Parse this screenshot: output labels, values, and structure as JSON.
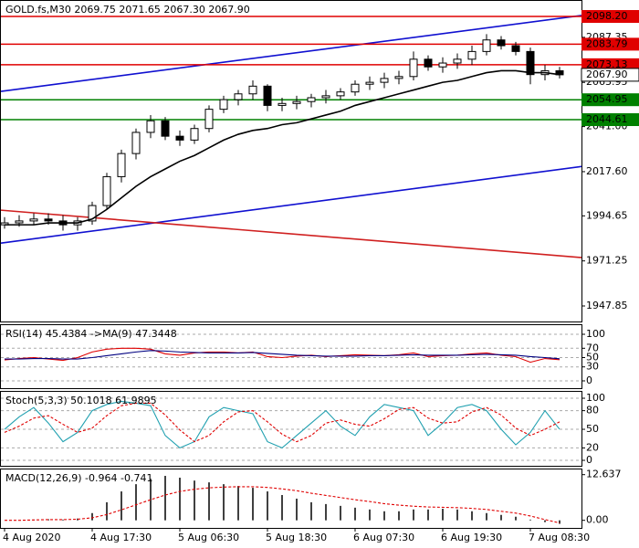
{
  "chart_data": [
    {
      "type": "candlestick",
      "title": "GOLD.fs,M30  2069.75 2071.65 2067.30 2067.90",
      "categories": [
        "4 Aug 2020",
        null,
        null,
        null,
        null,
        null,
        "4 Aug 17:30",
        null,
        null,
        null,
        null,
        null,
        "5 Aug 06:30",
        null,
        null,
        null,
        null,
        null,
        "5 Aug 18:30",
        null,
        null,
        null,
        null,
        null,
        "6 Aug 07:30",
        null,
        null,
        null,
        null,
        null,
        "6 Aug 19:30",
        null,
        null,
        null,
        null,
        null,
        "7 Aug 08:30",
        null,
        null
      ],
      "open": [
        1990,
        1991,
        1992,
        1993,
        1992,
        1990,
        1992,
        2000,
        2015,
        2027,
        2038,
        2044,
        2036,
        2034,
        2040,
        2050,
        2055,
        2058,
        2062,
        2052,
        2053,
        2054,
        2056,
        2057,
        2059,
        2063,
        2064,
        2066,
        2067,
        2076,
        2072,
        2074,
        2076,
        2080,
        2086,
        2083,
        2080,
        2068,
        2070
      ],
      "high": [
        1994,
        1995,
        1996,
        1996,
        1995,
        1994,
        2002,
        2017,
        2029,
        2040,
        2047,
        2046,
        2039,
        2042,
        2052,
        2057,
        2060,
        2065,
        2063,
        2056,
        2057,
        2058,
        2060,
        2061,
        2065,
        2067,
        2069,
        2070,
        2080,
        2078,
        2077,
        2079,
        2083,
        2089,
        2088,
        2085,
        2082,
        2073,
        2072
      ],
      "low": [
        1988,
        1989,
        1990,
        1990,
        1987,
        1987,
        1990,
        1998,
        2012,
        2024,
        2035,
        2034,
        2031,
        2032,
        2038,
        2048,
        2052,
        2055,
        2049,
        2049,
        2050,
        2051,
        2053,
        2055,
        2057,
        2060,
        2061,
        2063,
        2065,
        2070,
        2069,
        2071,
        2073,
        2078,
        2081,
        2078,
        2063,
        2065,
        2066
      ],
      "close": [
        1991,
        1992,
        1993,
        1992,
        1990,
        1992,
        2000,
        2015,
        2027,
        2038,
        2044,
        2036,
        2034,
        2040,
        2050,
        2055,
        2058,
        2062,
        2052,
        2053,
        2054,
        2056,
        2057,
        2059,
        2063,
        2064,
        2066,
        2067,
        2076,
        2072,
        2074,
        2076,
        2080,
        2086,
        2083,
        2080,
        2068,
        2070,
        2067.9
      ],
      "series": [
        {
          "color": "#000000",
          "kind": "line",
          "values": [
            1990,
            1990,
            1990,
            1991,
            1991,
            1991,
            1993,
            1998,
            2004,
            2010,
            2015,
            2019,
            2023,
            2026,
            2030,
            2034,
            2037,
            2039,
            2040,
            2042,
            2043,
            2045,
            2047,
            2049,
            2052,
            2054,
            2056,
            2058,
            2060,
            2062,
            2064,
            2065,
            2067,
            2069,
            2070,
            2070,
            2069,
            2069,
            2068
          ]
        }
      ],
      "ylim": [
        1939.79,
        2106.74
      ],
      "yticks": [
        2087.35,
        2063.95,
        {
          "value": 2041,
          "label": "2041.00"
        },
        {
          "value": 2017.6,
          "label": "2017.60"
        },
        1994.65,
        1971.25,
        1947.85
      ],
      "levels": [
        {
          "value": 2098.2,
          "label": "2098.20",
          "color": "#e00000"
        },
        {
          "value": 2083.79,
          "label": "2083.79",
          "color": "#e00000"
        },
        {
          "value": 2073.13,
          "label": "2073.13",
          "color": "#e00000"
        },
        {
          "value": 2054.95,
          "label": "2054.95",
          "color": "#008000"
        },
        {
          "value": 2044.61,
          "label": "2044.61",
          "color": "#008000"
        }
      ],
      "last_price": {
        "value": 2067.9,
        "label": "2067.90"
      },
      "trendlines": [
        {
          "start": 2059.3,
          "end": 2098.7,
          "color": "#1010d0"
        },
        {
          "start": 1980.5,
          "end": 2020.3,
          "color": "#1010d0"
        },
        {
          "start": 1997.6,
          "end": 1973.0,
          "color": "#d02020"
        }
      ],
      "grid": false
    },
    {
      "type": "line",
      "title": "RSI(14) 45.4384  ->MA(9) 47.3448",
      "series": [
        {
          "color": "#e00000",
          "kind": "line",
          "values": [
            45,
            48,
            50,
            47,
            44,
            50,
            62,
            68,
            70,
            70,
            68,
            58,
            55,
            60,
            62,
            62,
            60,
            62,
            52,
            50,
            53,
            55,
            52,
            54,
            56,
            55,
            54,
            56,
            60,
            52,
            54,
            55,
            58,
            60,
            55,
            52,
            40,
            48,
            45.4384
          ]
        },
        {
          "color": "#000080",
          "kind": "line",
          "values": [
            47,
            47,
            48,
            48,
            47,
            47,
            50,
            54,
            58,
            62,
            65,
            64,
            62,
            61,
            60,
            60,
            60,
            61,
            59,
            57,
            55,
            54,
            53,
            53,
            53,
            54,
            54,
            55,
            56,
            55,
            55,
            55,
            56,
            57,
            56,
            55,
            52,
            50,
            47.3448
          ]
        }
      ],
      "ylim": [
        -15.7,
        121.6
      ],
      "yticks": [
        100,
        70,
        50,
        30,
        0
      ],
      "grid": true
    },
    {
      "type": "line",
      "title": "Stoch(5,3,3) 50.1018 61.9895",
      "series": [
        {
          "color": "#20a0b0",
          "kind": "line",
          "values": [
            50,
            70,
            85,
            60,
            30,
            45,
            80,
            90,
            95,
            92,
            88,
            40,
            20,
            30,
            70,
            85,
            80,
            75,
            30,
            20,
            40,
            60,
            80,
            55,
            40,
            70,
            90,
            85,
            80,
            40,
            60,
            85,
            90,
            80,
            50,
            25,
            45,
            80,
            50.1018
          ]
        },
        {
          "color": "#e00000",
          "kind": "line",
          "dash": true,
          "values": [
            45,
            55,
            68,
            72,
            58,
            45,
            52,
            72,
            88,
            92,
            92,
            73,
            49,
            30,
            40,
            62,
            78,
            80,
            62,
            42,
            30,
            40,
            60,
            65,
            58,
            55,
            67,
            82,
            85,
            68,
            60,
            62,
            78,
            85,
            73,
            52,
            40,
            50,
            61.9895
          ]
        }
      ],
      "ylim": [
        -8.8,
        111.8
      ],
      "yticks": [
        100,
        80,
        50,
        20,
        0
      ],
      "grid": true
    },
    {
      "type": "bar",
      "title": "MACD(12,26,9) -0.964 -0.741",
      "series": [
        {
          "color": "#404040",
          "kind": "bar",
          "values": [
            0,
            0,
            0.2,
            0.3,
            0.2,
            0.5,
            2,
            5,
            8,
            10,
            11.5,
            12.3,
            11.8,
            11,
            10.5,
            10,
            9.5,
            9,
            8,
            7,
            6,
            5,
            4.5,
            4,
            3.5,
            3,
            2.5,
            2.5,
            3,
            3,
            3.2,
            3,
            2.5,
            2,
            1.5,
            1,
            0.2,
            -0.5,
            -0.964
          ]
        },
        {
          "color": "#e00000",
          "kind": "line",
          "dash": true,
          "values": [
            0,
            0,
            0.1,
            0.2,
            0.2,
            0.3,
            0.7,
            1.6,
            2.9,
            4.3,
            5.7,
            7,
            8,
            8.6,
            9,
            9.2,
            9.3,
            9.3,
            9.1,
            8.7,
            8.2,
            7.5,
            6.9,
            6.3,
            5.7,
            5.2,
            4.6,
            4.2,
            3.9,
            3.7,
            3.6,
            3.5,
            3.3,
            3,
            2.5,
            2,
            1.2,
            0.2,
            -0.741
          ]
        }
      ],
      "ylim": [
        -2.1,
        14.33
      ],
      "yticks": [
        12.637,
        {
          "value": 0,
          "label": "0.00"
        }
      ],
      "grid": false
    }
  ]
}
